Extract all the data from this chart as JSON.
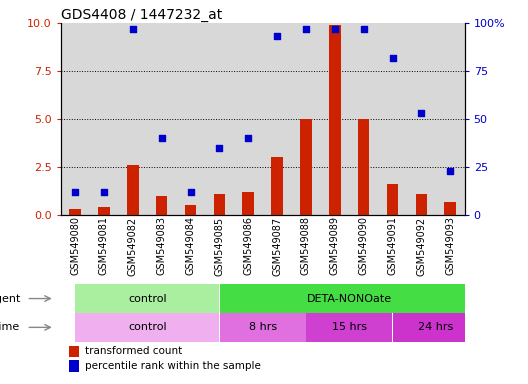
{
  "title": "GDS4408 / 1447232_at",
  "samples": [
    "GSM549080",
    "GSM549081",
    "GSM549082",
    "GSM549083",
    "GSM549084",
    "GSM549085",
    "GSM549086",
    "GSM549087",
    "GSM549088",
    "GSM549089",
    "GSM549090",
    "GSM549091",
    "GSM549092",
    "GSM549093"
  ],
  "transformed_count": [
    0.3,
    0.4,
    2.6,
    1.0,
    0.5,
    1.1,
    1.2,
    3.0,
    5.0,
    9.9,
    5.0,
    1.6,
    1.1,
    0.7
  ],
  "percentile_rank": [
    12,
    12,
    97,
    40,
    12,
    35,
    40,
    93,
    97,
    97,
    97,
    82,
    53,
    23
  ],
  "ylim_left": [
    0,
    10
  ],
  "ylim_right": [
    0,
    100
  ],
  "yticks_left": [
    0,
    2.5,
    5.0,
    7.5,
    10
  ],
  "yticks_right": [
    0,
    25,
    50,
    75,
    100
  ],
  "bar_color": "#cc2200",
  "scatter_color": "#0000cc",
  "agent_row": [
    {
      "label": "control",
      "start": 0,
      "end": 5,
      "color": "#aaeea0"
    },
    {
      "label": "DETA-NONOate",
      "start": 5,
      "end": 14,
      "color": "#44dd44"
    }
  ],
  "time_row": [
    {
      "label": "control",
      "start": 0,
      "end": 5,
      "color": "#f0b0f0"
    },
    {
      "label": "8 hrs",
      "start": 5,
      "end": 8,
      "color": "#e070e0"
    },
    {
      "label": "15 hrs",
      "start": 8,
      "end": 11,
      "color": "#d040d0"
    },
    {
      "label": "24 hrs",
      "start": 11,
      "end": 14,
      "color": "#cc33cc"
    }
  ],
  "legend_items": [
    {
      "label": "transformed count",
      "color": "#cc2200"
    },
    {
      "label": "percentile rank within the sample",
      "color": "#0000cc"
    }
  ],
  "grid_dotted_at": [
    2.5,
    5.0,
    7.5
  ],
  "xlabel_fontsize": 7,
  "title_fontsize": 10,
  "tick_fontsize": 8,
  "col_bg_color": "#d8d8d8"
}
